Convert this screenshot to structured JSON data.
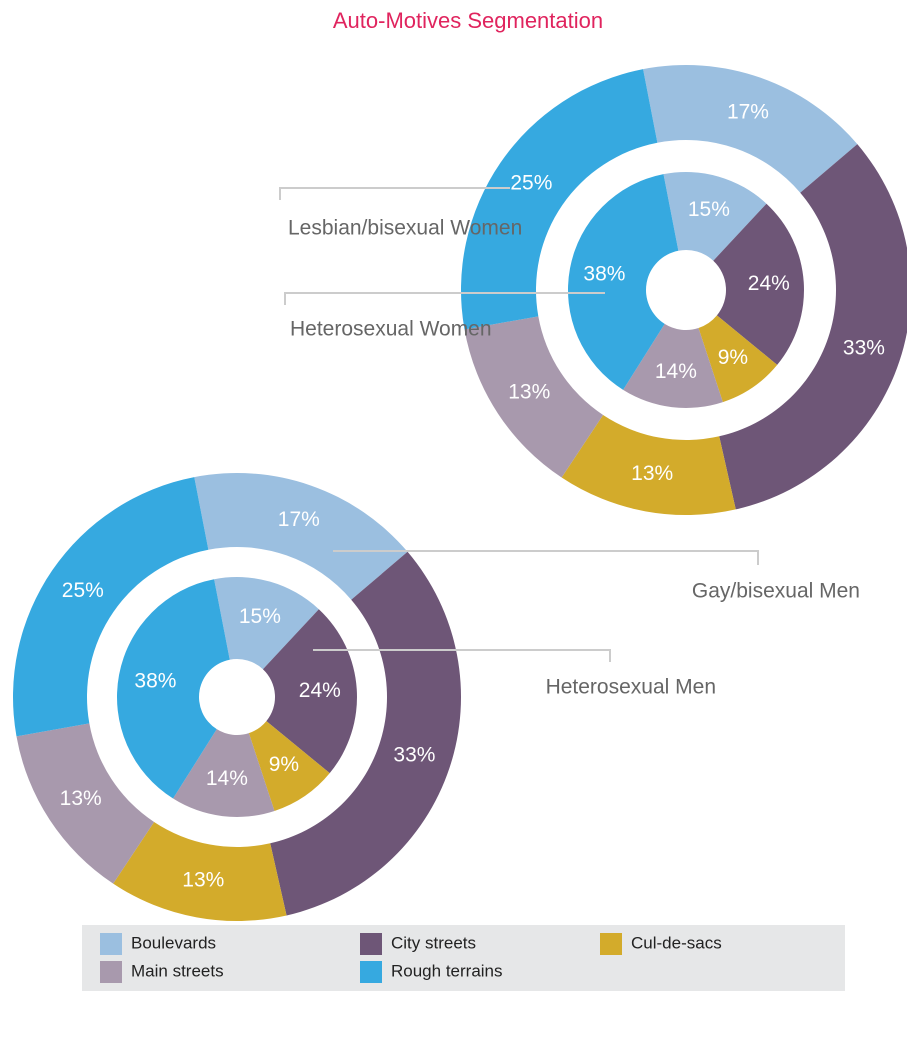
{
  "chart_data": {
    "type": "donut",
    "title": "Auto-Motives Segmentation",
    "categories": [
      "Boulevards",
      "City streets",
      "Cul-de-sacs",
      "Main streets",
      "Rough terrains"
    ],
    "colors": [
      "#9bbfe0",
      "#6e5677",
      "#d3ab2b",
      "#a899ad",
      "#36a9e0"
    ],
    "series": [
      {
        "name": "Lesbian/bisexual Women",
        "values": [
          17,
          33,
          13,
          13,
          25
        ],
        "value_labels": [
          "17%",
          "33%",
          "13%",
          "13%",
          "25%"
        ]
      },
      {
        "name": "Heterosexual Women",
        "values": [
          15,
          24,
          9,
          14,
          38
        ],
        "value_labels": [
          "15%",
          "24%",
          "9%",
          "14%",
          "38%"
        ]
      },
      {
        "name": "Gay/bisexual Men",
        "values": [
          17,
          33,
          13,
          13,
          25
        ],
        "value_labels": [
          "17%",
          "33%",
          "13%",
          "13%",
          "25%"
        ]
      },
      {
        "name": "Heterosexual Men",
        "values": [
          15,
          24,
          9,
          14,
          38
        ],
        "value_labels": [
          "15%",
          "24%",
          "9%",
          "14%",
          "38%"
        ]
      }
    ]
  }
}
